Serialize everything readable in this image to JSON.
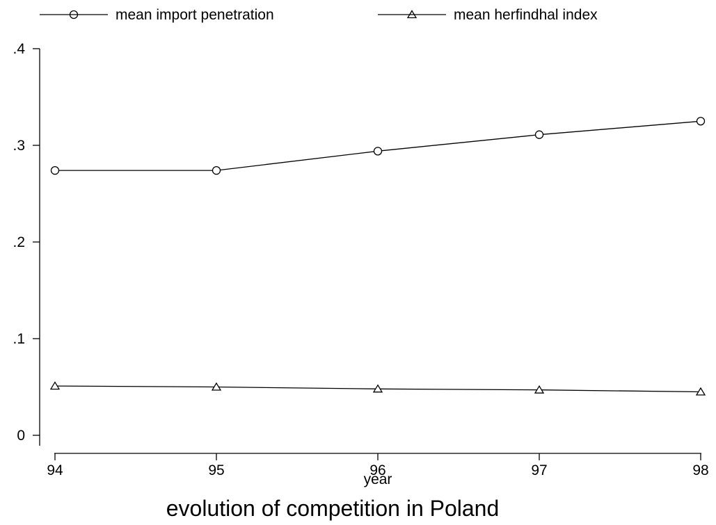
{
  "chart_data": {
    "type": "line",
    "title": "evolution of competition in Poland",
    "xlabel": "year",
    "ylabel": "",
    "x": [
      94,
      95,
      96,
      97,
      98
    ],
    "x_tick_labels": [
      "94",
      "95",
      "96",
      "97",
      "98"
    ],
    "y_tick_labels": [
      "0",
      ".1",
      ".2",
      ".3",
      ".4"
    ],
    "y_ticks": [
      0,
      0.1,
      0.2,
      0.3,
      0.4
    ],
    "xlim": [
      94,
      98
    ],
    "ylim": [
      0,
      0.4
    ],
    "grid": false,
    "legend_position": "top",
    "series": [
      {
        "name": "mean import penetration",
        "marker": "circle",
        "values": [
          0.274,
          0.274,
          0.294,
          0.311,
          0.325
        ]
      },
      {
        "name": "mean herfindhal index",
        "marker": "triangle",
        "values": [
          0.051,
          0.05,
          0.048,
          0.047,
          0.045
        ]
      }
    ],
    "colors": {
      "line": "#000000",
      "background": "#ffffff"
    }
  }
}
